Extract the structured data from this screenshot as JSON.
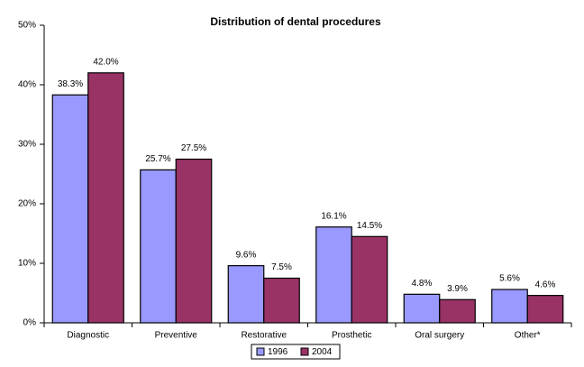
{
  "chart_data": {
    "type": "bar",
    "title": "Distribution of dental procedures",
    "categories": [
      "Diagnostic",
      "Preventive",
      "Restorative",
      "Prosthetic",
      "Oral surgery",
      "Other*"
    ],
    "series": [
      {
        "name": "1996",
        "color": "#9999ff",
        "values": [
          38.3,
          25.7,
          9.6,
          16.1,
          4.8,
          5.6
        ],
        "value_labels": [
          "38.3%",
          "25.7%",
          "9.6%",
          "16.1%",
          "4.8%",
          "5.6%"
        ]
      },
      {
        "name": "2004",
        "color": "#993366",
        "values": [
          42.0,
          27.5,
          7.5,
          14.5,
          3.9,
          4.6
        ],
        "value_labels": [
          "42.0%",
          "27.5%",
          "7.5%",
          "14.5%",
          "3.9%",
          "4.6%"
        ]
      }
    ],
    "ylim": [
      0,
      50
    ],
    "yticks": [
      {
        "value": 0,
        "label": "0%"
      },
      {
        "value": 10,
        "label": "10%"
      },
      {
        "value": 20,
        "label": "20%"
      },
      {
        "value": 30,
        "label": "30%"
      },
      {
        "value": 40,
        "label": "40%"
      },
      {
        "value": 50,
        "label": "50%"
      }
    ],
    "legend": "bottom"
  }
}
